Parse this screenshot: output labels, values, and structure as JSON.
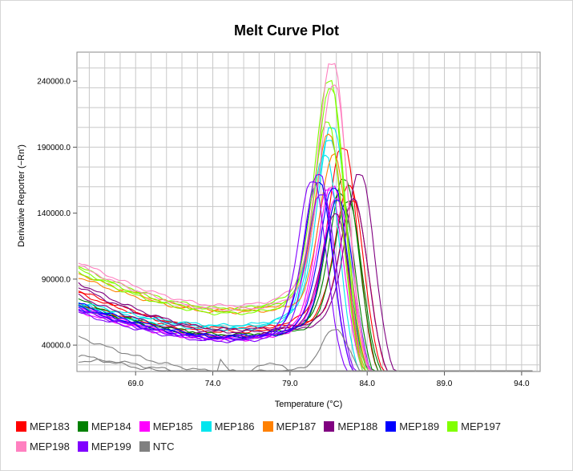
{
  "chart_data": {
    "type": "line",
    "title": "Melt Curve Plot",
    "xlabel": "Temperature (°C)",
    "ylabel": "Derivative Reporter (−Rn')",
    "xlim": [
      65.2,
      95.2
    ],
    "ylim": [
      20000,
      262000
    ],
    "xticks": [
      69.0,
      74.0,
      79.0,
      84.0,
      89.0,
      94.0
    ],
    "xtick_labels": [
      "69.0",
      "74.0",
      "79.0",
      "84.0",
      "89.0",
      "94.0"
    ],
    "yticks": [
      40000,
      90000,
      140000,
      190000,
      240000
    ],
    "ytick_labels": [
      "40000.0",
      "90000.0",
      "140000.0",
      "190000.0",
      "240000.0"
    ],
    "grid": true,
    "legend_position": "bottom",
    "series": [
      {
        "name": "MEP183",
        "color": "#ff0000",
        "replicates": [
          {
            "base_start": 80000,
            "base_min": 52000,
            "peak_temp": 82.5,
            "peak": 190000,
            "tail": 7000
          },
          {
            "base_start": 72000,
            "base_min": 50000,
            "peak_temp": 82.9,
            "peak": 160000,
            "tail": 7000
          },
          {
            "base_start": 82000,
            "base_min": 53000,
            "peak_temp": 83.2,
            "peak": 150000,
            "tail": 7000
          }
        ]
      },
      {
        "name": "MEP184",
        "color": "#008000",
        "replicates": [
          {
            "base_start": 75000,
            "base_min": 48000,
            "peak_temp": 82.6,
            "peak": 165000,
            "tail": 7000
          },
          {
            "base_start": 70000,
            "base_min": 46000,
            "peak_temp": 82.3,
            "peak": 155000,
            "tail": 7000
          },
          {
            "base_start": 72000,
            "base_min": 47000,
            "peak_temp": 82.8,
            "peak": 148000,
            "tail": 7000
          }
        ]
      },
      {
        "name": "MEP185",
        "color": "#ff00ff",
        "replicates": [
          {
            "base_start": 70000,
            "base_min": 45000,
            "peak_temp": 81.8,
            "peak": 160000,
            "tail": 7000
          },
          {
            "base_start": 68000,
            "base_min": 46000,
            "peak_temp": 82.1,
            "peak": 150000,
            "tail": 7000
          },
          {
            "base_start": 66000,
            "base_min": 44000,
            "peak_temp": 81.6,
            "peak": 157000,
            "tail": 7000
          }
        ]
      },
      {
        "name": "MEP186",
        "color": "#00e5ee",
        "replicates": [
          {
            "base_start": 73000,
            "base_min": 55000,
            "peak_temp": 81.8,
            "peak": 205000,
            "tail": 7000
          },
          {
            "base_start": 71000,
            "base_min": 54000,
            "peak_temp": 81.6,
            "peak": 195000,
            "tail": 7000
          },
          {
            "base_start": 69000,
            "base_min": 52000,
            "peak_temp": 81.3,
            "peak": 183000,
            "tail": 7000
          }
        ]
      },
      {
        "name": "MEP187",
        "color": "#ff8000",
        "replicates": [
          {
            "base_start": 95000,
            "base_min": 67000,
            "peak_temp": 81.6,
            "peak": 200000,
            "tail": 7000
          },
          {
            "base_start": 92000,
            "base_min": 65000,
            "peak_temp": 81.9,
            "peak": 185000,
            "tail": 7000
          }
        ]
      },
      {
        "name": "MEP188",
        "color": "#800080",
        "replicates": [
          {
            "base_start": 78000,
            "base_min": 47000,
            "peak_temp": 83.6,
            "peak": 168000,
            "tail": 7000
          },
          {
            "base_start": 88000,
            "base_min": 52000,
            "peak_temp": 83.2,
            "peak": 150000,
            "tail": 7000
          },
          {
            "base_start": 85000,
            "base_min": 50000,
            "peak_temp": 82.0,
            "peak": 140000,
            "tail": 7000
          }
        ]
      },
      {
        "name": "MEP189",
        "color": "#0000ff",
        "replicates": [
          {
            "base_start": 72000,
            "base_min": 47000,
            "peak_temp": 81.9,
            "peak": 158000,
            "tail": 7000
          },
          {
            "base_start": 70000,
            "base_min": 46000,
            "peak_temp": 82.2,
            "peak": 150000,
            "tail": 7000
          },
          {
            "base_start": 68000,
            "base_min": 45000,
            "peak_temp": 80.9,
            "peak": 162000,
            "tail": 7000
          }
        ]
      },
      {
        "name": "MEP197",
        "color": "#80ff00",
        "replicates": [
          {
            "base_start": 100000,
            "base_min": 68000,
            "peak_temp": 81.6,
            "peak": 240000,
            "tail": 7000
          },
          {
            "base_start": 98000,
            "base_min": 66000,
            "peak_temp": 81.7,
            "peak": 233000,
            "tail": 7000
          },
          {
            "base_start": 96000,
            "base_min": 64000,
            "peak_temp": 81.5,
            "peak": 208000,
            "tail": 7000
          }
        ]
      },
      {
        "name": "MEP198",
        "color": "#ff80c0",
        "replicates": [
          {
            "base_start": 104000,
            "base_min": 70000,
            "peak_temp": 81.8,
            "peak": 254000,
            "tail": 7000
          },
          {
            "base_start": 101000,
            "base_min": 67000,
            "peak_temp": 81.9,
            "peak": 236000,
            "tail": 7000
          }
        ]
      },
      {
        "name": "MEP199",
        "color": "#8000ff",
        "replicates": [
          {
            "base_start": 69000,
            "base_min": 45000,
            "peak_temp": 80.9,
            "peak": 168000,
            "tail": 7000
          },
          {
            "base_start": 67000,
            "base_min": 44000,
            "peak_temp": 80.5,
            "peak": 163000,
            "tail": 7000
          },
          {
            "base_start": 65000,
            "base_min": 43000,
            "peak_temp": 81.1,
            "peak": 155000,
            "tail": 7000
          }
        ]
      },
      {
        "name": "NTC",
        "color": "#808080",
        "replicates": [
          {
            "base_start": 47000,
            "base_min": 20000,
            "peak_temp": 82.0,
            "peak": 52000,
            "tail": 9000
          },
          {
            "base_start": 35000,
            "base_min": 18000,
            "peak_temp": 78.0,
            "peak": 28000,
            "tail": 9000
          },
          {
            "base_start": 33000,
            "base_min": 16000,
            "peak_temp": 74.0,
            "peak": 32000,
            "tail": 9000
          }
        ]
      }
    ]
  }
}
